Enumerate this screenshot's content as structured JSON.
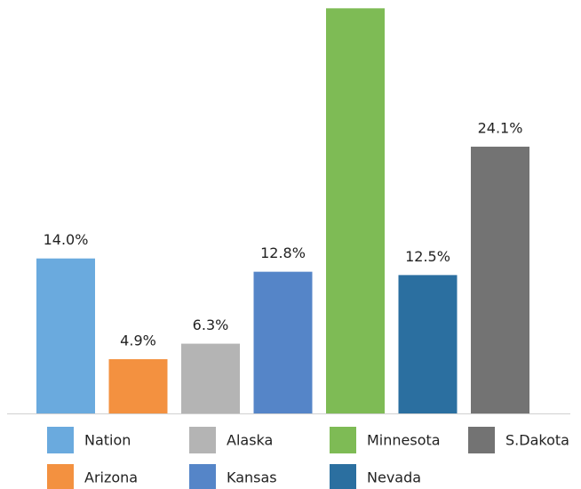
{
  "chart_data": {
    "type": "bar",
    "categories": [
      "Nation",
      "Arizona",
      "Alaska",
      "Kansas",
      "Minnesota",
      "Nevada",
      "S.Dakota"
    ],
    "values": [
      14.0,
      4.9,
      6.3,
      12.8,
      36.6,
      12.5,
      24.1
    ],
    "value_labels": [
      "14.0%",
      "4.9%",
      "6.3%",
      "12.8%",
      null,
      "12.5%",
      "24.1%"
    ],
    "colors": [
      "#6aaade",
      "#f39140",
      "#b4b4b4",
      "#5585c8",
      "#7ebb55",
      "#2b6fa0",
      "#737373"
    ],
    "legend": "bottom"
  }
}
